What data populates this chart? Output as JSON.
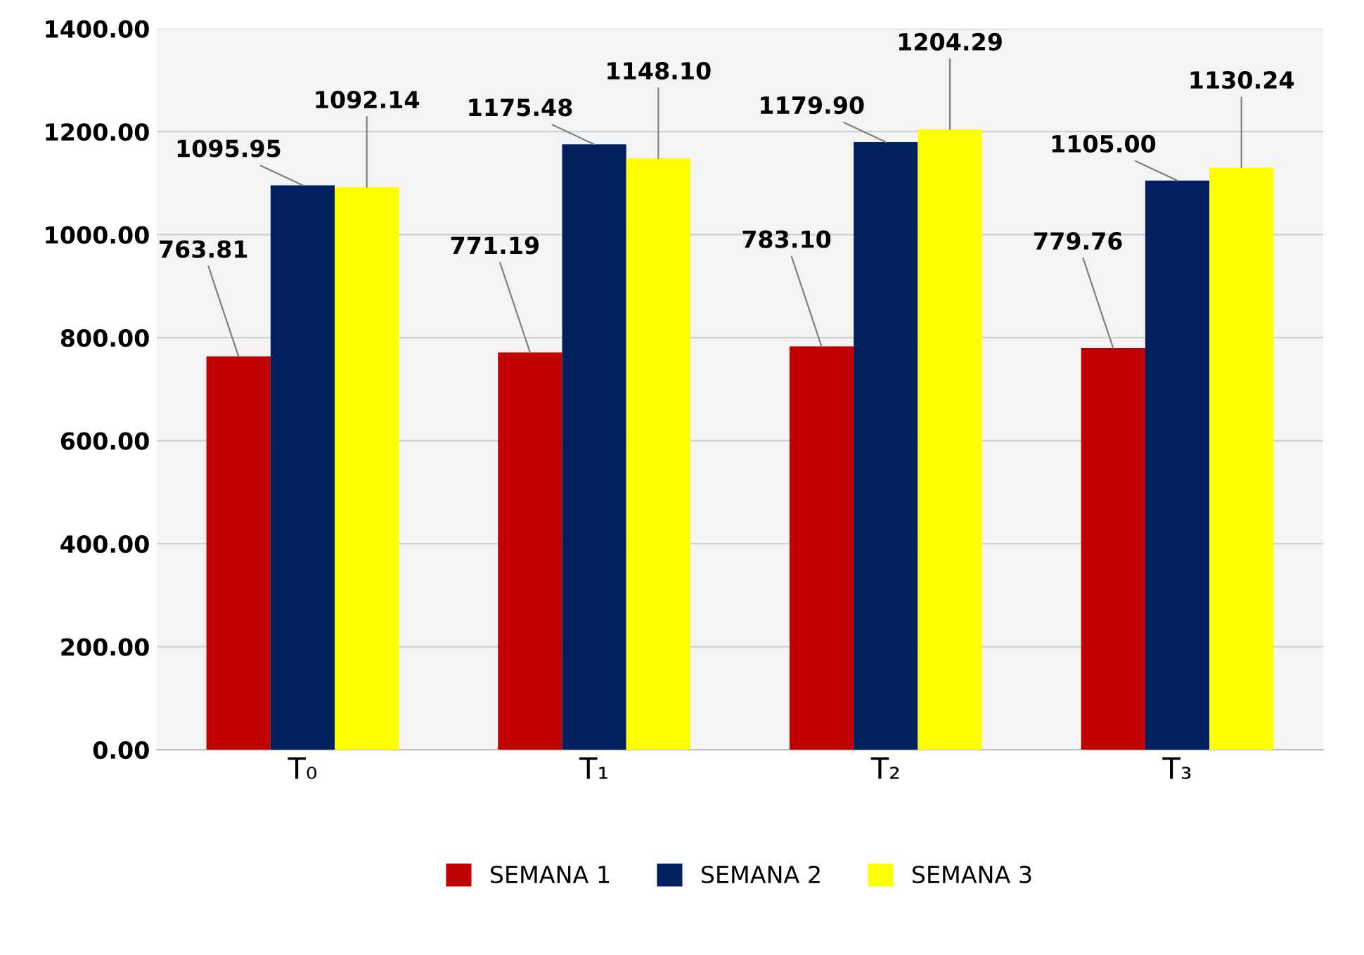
{
  "chart_data": {
    "type": "bar",
    "categories": [
      "T₀",
      "T₁",
      "T₂",
      "T₃"
    ],
    "series": [
      {
        "name": "SEMANA 1",
        "color": "#c00000",
        "values": [
          763.81,
          771.19,
          783.1,
          779.76
        ]
      },
      {
        "name": "SEMANA 2",
        "color": "#002060",
        "values": [
          1095.95,
          1175.48,
          1179.9,
          1105.0
        ]
      },
      {
        "name": "SEMANA 3",
        "color": "#ffff00",
        "values": [
          1092.14,
          1148.1,
          1204.29,
          1130.24
        ]
      }
    ],
    "value_labels": [
      [
        "763.81",
        "771.19",
        "783.10",
        "779.76"
      ],
      [
        "1095.95",
        "1175.48",
        "1179.90",
        "1105.00"
      ],
      [
        "1092.14",
        "1148.10",
        "1204.29",
        "1130.24"
      ]
    ],
    "ylim": [
      0,
      1400
    ],
    "yticks": [
      {
        "value": 0,
        "label": "0.00"
      },
      {
        "value": 200,
        "label": "200.00"
      },
      {
        "value": 400,
        "label": "400.00"
      },
      {
        "value": 600,
        "label": "600.00"
      },
      {
        "value": 800,
        "label": "800.00"
      },
      {
        "value": 1000,
        "label": "1000.00"
      },
      {
        "value": 1200,
        "label": "1200.00"
      },
      {
        "value": 1400,
        "label": "1400.00"
      }
    ],
    "grid": "y",
    "legend": "bottom"
  }
}
